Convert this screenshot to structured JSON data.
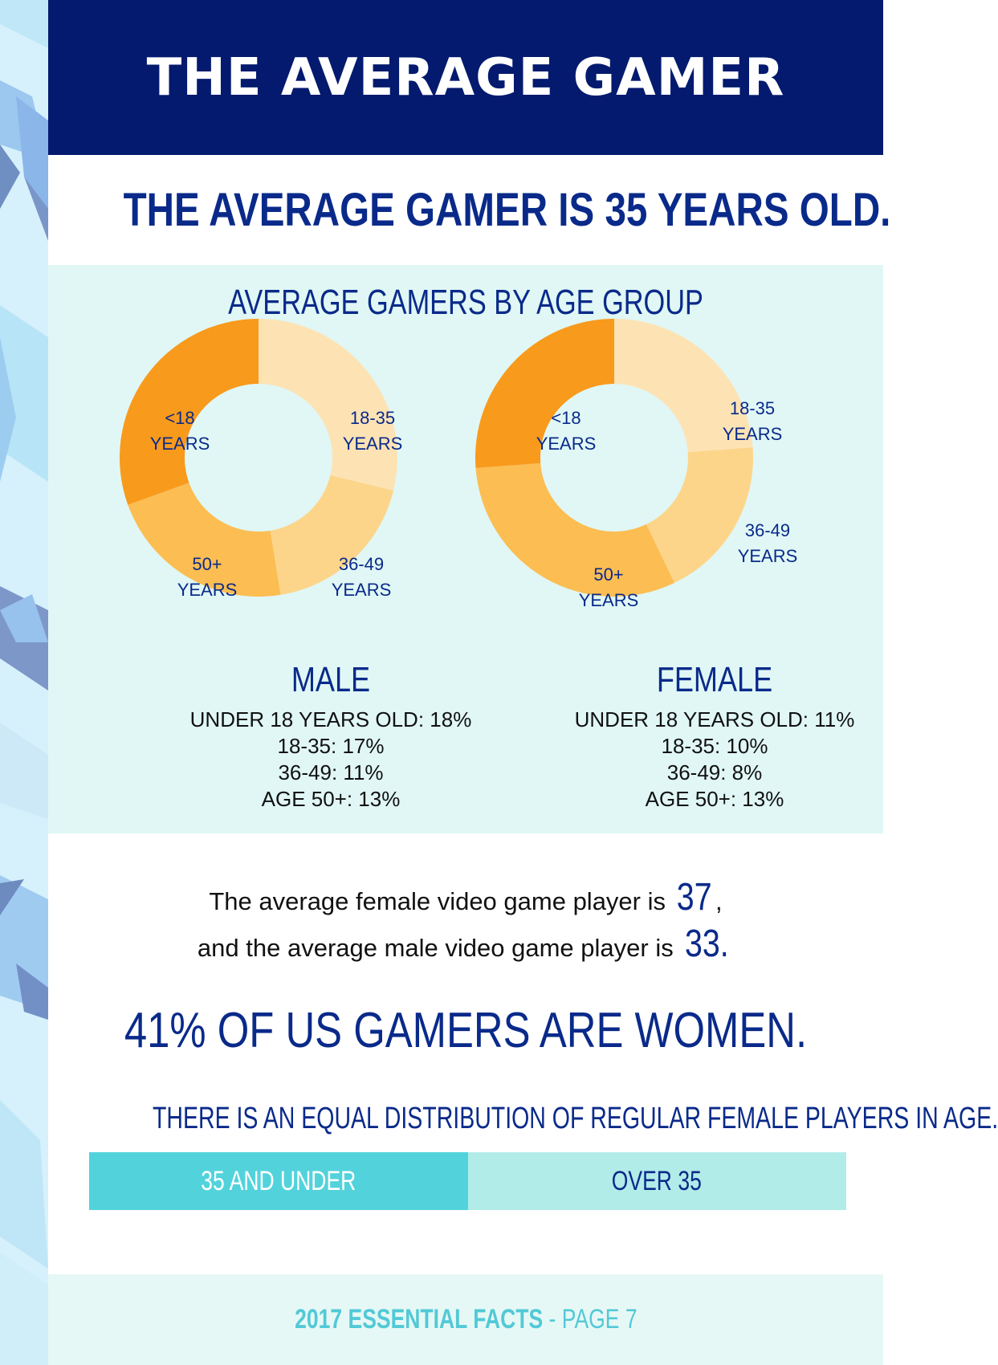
{
  "header": {
    "title": "THE AVERAGE GAMER"
  },
  "headline": "THE AVERAGE GAMER IS 35 YEARS OLD.",
  "colors": {
    "navy": "#031a6e",
    "text_blue": "#0a2a8a",
    "panel": "#e0f7f5",
    "teal": "#52d3dc",
    "light_teal": "#b1ece9",
    "footer_teal": "#52c9d6"
  },
  "chart_data": [
    {
      "type": "pie",
      "title": "AVERAGE GAMERS BY AGE GROUP",
      "name": "MALE",
      "categories": [
        "<18 YEARS",
        "18-35 YEARS",
        "36-49 YEARS",
        "50+ YEARS"
      ],
      "values": [
        18,
        17,
        11,
        13
      ],
      "colors": [
        "#f89a1c",
        "#fde3b4",
        "#fdd58a",
        "#fcbd52"
      ]
    },
    {
      "type": "pie",
      "title": "AVERAGE GAMERS BY AGE GROUP",
      "name": "FEMALE",
      "categories": [
        "<18 YEARS",
        "18-35 YEARS",
        "36-49 YEARS",
        "50+ YEARS"
      ],
      "values": [
        11,
        10,
        8,
        13
      ],
      "colors": [
        "#f89a1c",
        "#fde3b4",
        "#fdd58a",
        "#fcbd52"
      ]
    },
    {
      "type": "bar",
      "title": "THERE IS AN EQUAL DISTRIBUTION OF REGULAR FEMALE PLAYERS IN AGE.",
      "categories": [
        "35 AND UNDER",
        "OVER 35"
      ],
      "values": [
        50,
        50
      ]
    }
  ],
  "panel": {
    "title": "AVERAGE GAMERS BY AGE GROUP",
    "slice_labels": {
      "under18": [
        "<18",
        "YEARS"
      ],
      "age18_35": [
        "18-35",
        "YEARS"
      ],
      "age36_49": [
        "36-49",
        "YEARS"
      ],
      "age50": [
        "50+",
        "YEARS"
      ]
    },
    "male": {
      "label": "MALE",
      "stats": [
        "UNDER 18 YEARS OLD: 18%",
        "18-35: 17%",
        "36-49: 11%",
        "AGE 50+: 13%"
      ]
    },
    "female": {
      "label": "FEMALE",
      "stats": [
        "UNDER 18 YEARS OLD: 11%",
        "18-35: 10%",
        "36-49: 8%",
        "AGE 50+: 13%"
      ]
    }
  },
  "averages": {
    "female_text": "The average female video game player is ",
    "female_age": "37",
    "female_suffix": ",",
    "male_text": "and the average male video game player is ",
    "male_age": "33."
  },
  "women_stat": "41% OF US GAMERS ARE WOMEN.",
  "distribution": {
    "title": "THERE IS AN EQUAL DISTRIBUTION OF REGULAR FEMALE PLAYERS IN AGE.",
    "under_label": "35 AND UNDER",
    "over_label": "OVER 35",
    "under_share": 0.5
  },
  "footer": {
    "bold": "2017 ESSENTIAL FACTS",
    "rest": " - PAGE 7"
  }
}
